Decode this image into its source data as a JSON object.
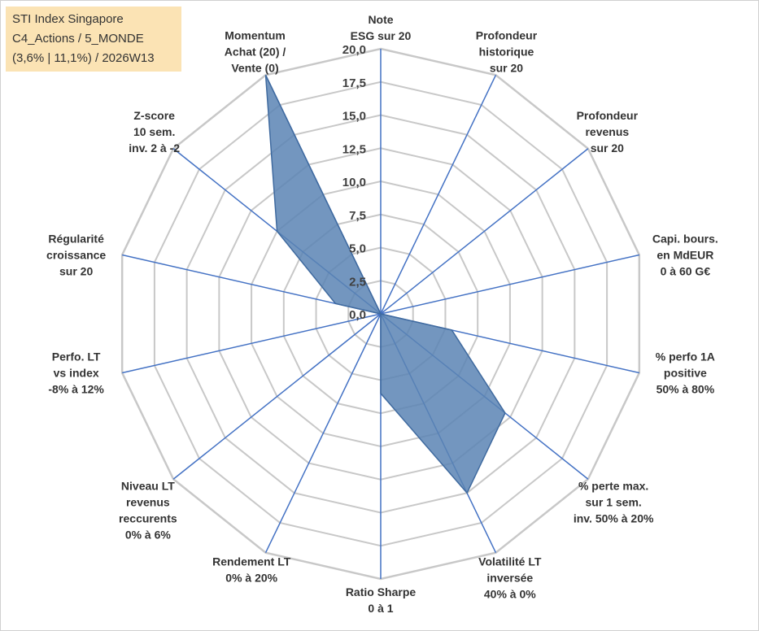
{
  "title_box": {
    "line1": "STI Index Singapore",
    "line2": "C4_Actions / 5_MONDE",
    "line3": "(3,6% | 11,1%) / 2026W13"
  },
  "chart_data": {
    "type": "radar",
    "title": "STI Index Singapore",
    "rlim": [
      0,
      20
    ],
    "ticks": [
      "0,0",
      "2,5",
      "5,0",
      "7,5",
      "10,0",
      "12,5",
      "15,0",
      "17,5",
      "20,0"
    ],
    "axes": [
      {
        "label": [
          "Note",
          "ESG sur 20"
        ],
        "value": 0
      },
      {
        "label": [
          "Profondeur",
          "historique",
          "sur 20"
        ],
        "value": 0
      },
      {
        "label": [
          "Profondeur",
          "revenus",
          "sur 20"
        ],
        "value": 0
      },
      {
        "label": [
          "Capi. bours.",
          "en MdEUR",
          "0 à 60 G€"
        ],
        "value": 0
      },
      {
        "label": [
          "% perfo 1A",
          "positive",
          "50% à 80%"
        ],
        "value": 5.5
      },
      {
        "label": [
          "% perte max.",
          "sur 1 sem.",
          "inv. 50% à 20%"
        ],
        "value": 12.0
      },
      {
        "label": [
          "Volatilité LT",
          "inversée",
          "40% à 0%"
        ],
        "value": 15.0
      },
      {
        "label": [
          "Ratio Sharpe",
          "0 à 1"
        ],
        "value": 6.0
      },
      {
        "label": [
          "Rendement LT",
          "0% à 20%"
        ],
        "value": 0
      },
      {
        "label": [
          "Niveau LT",
          "revenus",
          "reccurents",
          "0% à 6%"
        ],
        "value": 0
      },
      {
        "label": [
          "Perfo. LT",
          "vs index",
          "-8% à 12%"
        ],
        "value": 0
      },
      {
        "label": [
          "Régularité",
          "croissance",
          "sur 20"
        ],
        "value": 3.5
      },
      {
        "label": [
          "Z-score",
          "10 sem.",
          "inv. 2 à -2"
        ],
        "value": 10.0
      },
      {
        "label": [
          "Momentum",
          "Achat (20) /",
          "Vente (0)"
        ],
        "value": 20.0
      }
    ],
    "colors": {
      "grid": "#c8c8c8",
      "spoke": "#4472c4",
      "fill": "#5b84b4",
      "fill_stroke": "#3f6a9f"
    },
    "grid": true,
    "legend": "none"
  }
}
